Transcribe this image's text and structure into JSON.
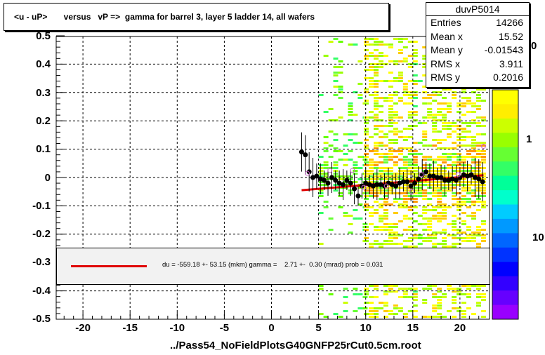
{
  "title": "<u - uP>       versus   vP =>  gamma for barrel 3, layer 5 ladder 14, all wafers",
  "stats": {
    "name": "duvP5014",
    "rows": [
      {
        "k": "Entries",
        "v": "14266"
      },
      {
        "k": "Mean x",
        "v": "15.52"
      },
      {
        "k": "Mean y",
        "v": "-0.01543"
      },
      {
        "k": "RMS x",
        "v": "3.911"
      },
      {
        "k": "RMS y",
        "v": "0.2016"
      }
    ]
  },
  "fit_text": "du = -559.18 +- 53.15 (mkm) gamma =    2.71 +-  0.30 (mrad) prob = 0.031",
  "footer": "../Pass54_NoFieldPlotsG40GNFP25rCut0.5cm.root",
  "zaxis_labels": [
    "0",
    "1",
    "10"
  ],
  "colors": {
    "fit": "#e00000",
    "profile": "#000000",
    "open": "#cc66cc"
  },
  "chart_data": {
    "type": "heatmap",
    "xlim": [
      -22.5,
      23
    ],
    "ylim": [
      -0.5,
      0.5
    ],
    "x_ticks": [
      "-20",
      "-15",
      "-10",
      "-5",
      "0",
      "5",
      "10",
      "15",
      "20"
    ],
    "y_ticks": [
      "0.5",
      "0.4",
      "0.3",
      "0.2",
      "0.1",
      "0",
      "-0.1",
      "-0.2",
      "-0.3",
      "-0.4",
      "-0.5"
    ],
    "grid": true,
    "fit_line": {
      "x": [
        3.2,
        22.5
      ],
      "y": [
        -0.045,
        0.008
      ]
    },
    "profile_points": [
      {
        "x": 3.2,
        "y": 0.09
      },
      {
        "x": 3.6,
        "y": 0.08
      },
      {
        "x": 4.0,
        "y": 0.02
      },
      {
        "x": 4.4,
        "y": 0.0
      },
      {
        "x": 4.8,
        "y": 0.005
      },
      {
        "x": 5.2,
        "y": -0.005
      },
      {
        "x": 5.6,
        "y": -0.01
      },
      {
        "x": 6.0,
        "y": -0.02
      },
      {
        "x": 6.4,
        "y": 0.0
      },
      {
        "x": 6.8,
        "y": -0.01
      },
      {
        "x": 7.2,
        "y": -0.02
      },
      {
        "x": 7.6,
        "y": -0.025
      },
      {
        "x": 8.0,
        "y": -0.01
      },
      {
        "x": 8.4,
        "y": -0.02
      },
      {
        "x": 8.8,
        "y": -0.04
      },
      {
        "x": 9.2,
        "y": -0.065
      },
      {
        "x": 9.6,
        "y": -0.03
      },
      {
        "x": 10.0,
        "y": -0.02
      },
      {
        "x": 10.4,
        "y": -0.025
      },
      {
        "x": 10.8,
        "y": -0.03
      },
      {
        "x": 11.2,
        "y": -0.025
      },
      {
        "x": 11.6,
        "y": -0.025
      },
      {
        "x": 12.0,
        "y": -0.03
      },
      {
        "x": 12.4,
        "y": -0.02
      },
      {
        "x": 12.8,
        "y": -0.025
      },
      {
        "x": 13.2,
        "y": -0.03
      },
      {
        "x": 13.6,
        "y": -0.02
      },
      {
        "x": 14.0,
        "y": -0.015
      },
      {
        "x": 14.4,
        "y": -0.015
      },
      {
        "x": 14.8,
        "y": -0.03
      },
      {
        "x": 15.2,
        "y": -0.02
      },
      {
        "x": 15.6,
        "y": -0.005
      },
      {
        "x": 16.0,
        "y": 0.01
      },
      {
        "x": 16.4,
        "y": 0.02
      },
      {
        "x": 16.8,
        "y": 0.005
      },
      {
        "x": 17.2,
        "y": 0.005
      },
      {
        "x": 17.6,
        "y": 0.0
      },
      {
        "x": 18.0,
        "y": 0.0
      },
      {
        "x": 18.4,
        "y": -0.01
      },
      {
        "x": 18.8,
        "y": -0.01
      },
      {
        "x": 19.2,
        "y": -0.005
      },
      {
        "x": 19.6,
        "y": -0.01
      },
      {
        "x": 20.0,
        "y": 0.0
      },
      {
        "x": 20.4,
        "y": 0.01
      },
      {
        "x": 20.8,
        "y": 0.005
      },
      {
        "x": 21.2,
        "y": 0.01
      },
      {
        "x": 21.6,
        "y": 0.0
      },
      {
        "x": 22.0,
        "y": -0.005
      },
      {
        "x": 22.4,
        "y": -0.015
      }
    ],
    "open_points": [
      {
        "x": 3.8,
        "y": 0.015
      },
      {
        "x": 6.2,
        "y": 0.025
      },
      {
        "x": 8.6,
        "y": 0.025
      },
      {
        "x": 9.8,
        "y": -0.035
      },
      {
        "x": 12.2,
        "y": -0.03
      },
      {
        "x": 14.9,
        "y": -0.05
      },
      {
        "x": 15.9,
        "y": 0.01
      },
      {
        "x": 19.8,
        "y": 0.01
      },
      {
        "x": 22.5,
        "y": 0.11
      }
    ],
    "density_regions": [
      {
        "x": [
          5.0,
          9.8
        ],
        "level": "low"
      },
      {
        "x": [
          9.8,
          15.0
        ],
        "level": "high"
      },
      {
        "x": [
          15.0,
          16.0
        ],
        "level": "low"
      },
      {
        "x": [
          16.0,
          22.5
        ],
        "level": "high"
      }
    ]
  }
}
